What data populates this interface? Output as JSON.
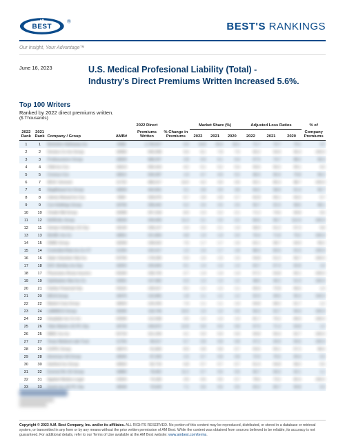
{
  "brand": {
    "logo_text_top": "AM",
    "logo_text_main": "BEST",
    "logo_text_since": "SINCE 1899",
    "title_bold": "BEST'S",
    "title_light": " RANKINGS",
    "tagline": "Our Insight, Your Advantage™"
  },
  "date": "June 16, 2023",
  "main_title_line1": "U.S. Medical Profesional Liability (Total) -",
  "main_title_line2": "Industry's Direct Premiums Written Increased 5.6%.",
  "section": {
    "title": "Top 100 Writers",
    "sub": "Ranked by 2022 direct premiums written.",
    "unit": "($ Thousands)"
  },
  "table": {
    "col_widths_pct": [
      4,
      4,
      19,
      6,
      9,
      8,
      5,
      5,
      5,
      6,
      6,
      6,
      7
    ],
    "header_row1": [
      "",
      "",
      "",
      "",
      "2022 Direct",
      "",
      "Market Share (%)",
      "Adjusted Loss Ratios",
      "% of"
    ],
    "header_row1_spans": [
      1,
      1,
      1,
      1,
      1,
      1,
      3,
      3,
      1
    ],
    "header_row2": [
      "2022 Rank",
      "2021 Rank",
      "Company / Group",
      "AMB#",
      "Premiums Written",
      "% Change in Premiums",
      "2022",
      "2021",
      "2020",
      "2022",
      "2021",
      "2020",
      "Company Premiums"
    ],
    "rows": [
      {
        "r22": "1",
        "r21": "1",
        "co": "Berkshire Hathaway Ins",
        "amb": "0058",
        "dpw": "1726917",
        "chg": "0.0",
        "ms22": "14.8",
        "ms21": "15.6",
        "ms20": "16.1",
        "lr22": "71.7",
        "lr21": "72.7",
        "lr20": "73.1",
        "pct": "2.2"
      },
      {
        "r22": "2",
        "r21": "2",
        "co": "Doctors Co Ins Group",
        "amb": "18083",
        "dpw": "940098",
        "chg": "9.4",
        "ms22": "8.1",
        "ms21": "7.8",
        "ms20": "7.5",
        "lr22": "60.2",
        "lr21": "54.9",
        "lr20": "56.3",
        "pct": "100.0"
      },
      {
        "r22": "3",
        "r21": "3",
        "co": "ProAssurance Group",
        "amb": "18559",
        "dpw": "688257",
        "chg": "2.8",
        "ms22": "5.9",
        "ms21": "6.1",
        "ms20": "6.4",
        "lr22": "67.5",
        "lr21": "74.7",
        "lr20": "88.2",
        "pct": "58.3"
      },
      {
        "r22": "4",
        "r21": "4",
        "co": "CNA Ins Cos",
        "amb": "18313",
        "dpw": "595416",
        "chg": "4.2",
        "ms22": "5.1",
        "ms21": "5.2",
        "ms20": "5.4",
        "lr22": "59.6",
        "lr21": "56.2",
        "lr20": "59.1",
        "pct": "4.3"
      },
      {
        "r22": "5",
        "r21": "5",
        "co": "Coverys Cos",
        "amb": "18521",
        "dpw": "549287",
        "chg": "1.9",
        "ms22": "4.7",
        "ms21": "4.9",
        "ms20": "5.2",
        "lr22": "68.3",
        "lr21": "65.4",
        "lr20": "70.8",
        "pct": "96.2"
      },
      {
        "r22": "6",
        "r21": "7",
        "co": "MCIC Vermont",
        "amb": "11722",
        "dpw": "486517",
        "chg": "14.0",
        "ms22": "4.2",
        "ms21": "3.9",
        "ms20": "3.6",
        "lr22": "92.1",
        "lr21": "85.3",
        "lr20": "88.7",
        "pct": "100.0"
      },
      {
        "r22": "7",
        "r21": "6",
        "co": "MagMutual Ins Group",
        "amb": "18559",
        "dpw": "442831",
        "chg": "3.1",
        "ms22": "3.8",
        "ms21": "3.9",
        "ms20": "3.8",
        "lr22": "64.2",
        "lr21": "58.9",
        "lr20": "61.4",
        "pct": "95.7"
      },
      {
        "r22": "8",
        "r21": "8",
        "co": "Liberty Mutual Ins Cos",
        "amb": "0060",
        "dpw": "328975",
        "chg": "6.7",
        "ms22": "2.8",
        "ms21": "2.8",
        "ms20": "2.7",
        "lr22": "62.8",
        "lr21": "66.1",
        "lr20": "64.3",
        "pct": "0.7"
      },
      {
        "r22": "9",
        "r21": "9",
        "co": "Curi Holdings Group",
        "amb": "18706",
        "dpw": "298442",
        "chg": "5.2",
        "ms22": "2.6",
        "ms21": "2.6",
        "ms20": "2.5",
        "lr22": "55.7",
        "lr21": "52.3",
        "lr20": "58.6",
        "pct": "98.1"
      },
      {
        "r22": "10",
        "r21": "10",
        "co": "Chubb INA Group",
        "amb": "18498",
        "dpw": "267318",
        "chg": "8.9",
        "ms22": "2.3",
        "ms21": "2.2",
        "ms20": "2.1",
        "lr22": "71.2",
        "lr21": "74.6",
        "lr20": "69.8",
        "pct": "0.6"
      },
      {
        "r22": "11",
        "r21": "12",
        "co": "NORCAL Group",
        "amb": "18539",
        "dpw": "245690",
        "chg": "11.3",
        "ms22": "2.1",
        "ms21": "2.0",
        "ms20": "2.2",
        "lr22": "83.5",
        "lr21": "95.7",
        "lr20": "112.4",
        "pct": "100.0"
      },
      {
        "r22": "12",
        "r21": "11",
        "co": "Sompo Holdings US Grp",
        "amb": "18130",
        "dpw": "238127",
        "chg": "2.4",
        "ms22": "2.0",
        "ms21": "2.1",
        "ms20": "1.9",
        "lr22": "58.9",
        "lr21": "61.2",
        "lr20": "57.3",
        "pct": "5.8"
      },
      {
        "r22": "13",
        "r21": "13",
        "co": "MLMIC Ins Co",
        "amb": "18651",
        "dpw": "221854",
        "chg": "4.8",
        "ms22": "1.9",
        "ms21": "1.9",
        "ms20": "2.0",
        "lr22": "76.4",
        "lr21": "71.8",
        "lr20": "79.2",
        "pct": "100.0"
      },
      {
        "r22": "14",
        "r21": "15",
        "co": "ISMIE Group",
        "amb": "18268",
        "dpw": "198632",
        "chg": "7.6",
        "ms22": "1.7",
        "ms21": "1.7",
        "ms20": "1.6",
        "lr22": "62.1",
        "lr21": "58.7",
        "lr20": "64.9",
        "pct": "99.2"
      },
      {
        "r22": "15",
        "r21": "14",
        "co": "Controlled Risk Ins Co VT",
        "amb": "11294",
        "dpw": "192417",
        "chg": "1.2",
        "ms22": "1.6",
        "ms21": "1.7",
        "ms20": "1.8",
        "lr22": "88.3",
        "lr21": "82.6",
        "lr20": "91.5",
        "pct": "100.0"
      },
      {
        "r22": "16",
        "r21": "16",
        "co": "State Volunteer Mut Ins",
        "amb": "03706",
        "dpw": "178295",
        "chg": "5.9",
        "ms22": "1.5",
        "ms21": "1.5",
        "ms20": "1.5",
        "lr22": "54.8",
        "lr21": "51.2",
        "lr20": "56.7",
        "pct": "100.0"
      },
      {
        "r22": "17",
        "r21": "18",
        "co": "W.R. Berkley Ins Grp",
        "amb": "18252",
        "dpw": "165843",
        "chg": "9.1",
        "ms22": "1.4",
        "ms21": "1.4",
        "ms20": "1.3",
        "lr22": "63.7",
        "lr21": "67.4",
        "lr20": "62.8",
        "pct": "1.6"
      },
      {
        "r22": "18",
        "r21": "17",
        "co": "Physicians Recip Insurers",
        "amb": "03240",
        "dpw": "158726",
        "chg": "2.7",
        "ms22": "1.4",
        "ms21": "1.4",
        "ms20": "1.4",
        "lr22": "57.2",
        "lr21": "53.8",
        "lr20": "60.1",
        "pct": "100.0"
      },
      {
        "r22": "19",
        "r21": "19",
        "co": "Ophthalmic Mut Ins Co",
        "amb": "10691",
        "dpw": "147582",
        "chg": "6.3",
        "ms22": "1.3",
        "ms21": "1.3",
        "ms20": "1.2",
        "lr22": "48.6",
        "lr21": "45.2",
        "lr20": "51.9",
        "pct": "100.0"
      },
      {
        "r22": "20",
        "r21": "21",
        "co": "Fairfax Financial Grp",
        "amb": "03116",
        "dpw": "139417",
        "chg": "8.2",
        "ms22": "1.2",
        "ms21": "1.2",
        "ms20": "1.1",
        "lr22": "69.4",
        "lr21": "72.8",
        "lr20": "66.5",
        "pct": "1.3"
      },
      {
        "r22": "21",
        "r21": "20",
        "co": "MICA Group",
        "amb": "18476",
        "dpw": "132865",
        "chg": "1.8",
        "ms22": "1.1",
        "ms21": "1.2",
        "ms20": "1.2",
        "lr22": "52.9",
        "lr21": "49.6",
        "lr20": "55.3",
        "pct": "100.0"
      },
      {
        "r22": "22",
        "r21": "22",
        "co": "Markel Corp Group",
        "amb": "18603",
        "dpw": "126293",
        "chg": "7.4",
        "ms22": "1.1",
        "ms21": "1.1",
        "ms20": "1.0",
        "lr22": "64.8",
        "lr21": "68.2",
        "lr20": "61.7",
        "pct": "1.2"
      },
      {
        "r22": "23",
        "r21": "24",
        "co": "LAMMICO Group",
        "amb": "18345",
        "dpw": "118746",
        "chg": "10.6",
        "ms22": "1.0",
        "ms21": "1.0",
        "ms20": "0.9",
        "lr22": "56.3",
        "lr21": "52.7",
        "lr20": "59.4",
        "pct": "100.0"
      },
      {
        "r22": "24",
        "r21": "23",
        "co": "Hospitals Ins Co Inc",
        "amb": "02599",
        "dpw": "112538",
        "chg": "3.5",
        "ms22": "1.0",
        "ms21": "1.0",
        "ms20": "1.0",
        "lr22": "81.7",
        "lr21": "76.2",
        "lr20": "84.9",
        "pct": "100.0"
      },
      {
        "r22": "25",
        "r21": "26",
        "co": "Tokio Marine US PC Grp",
        "amb": "18733",
        "dpw": "106872",
        "chg": "12.8",
        "ms22": "0.9",
        "ms21": "0.9",
        "ms20": "0.8",
        "lr22": "67.5",
        "lr21": "71.3",
        "lr20": "63.8",
        "pct": "1.2"
      },
      {
        "r22": "26",
        "r21": "25",
        "co": "MMIC Ins Inc",
        "amb": "02724",
        "dpw": "101294",
        "chg": "4.1",
        "ms22": "0.9",
        "ms21": "0.9",
        "ms20": "0.9",
        "lr22": "59.8",
        "lr21": "56.4",
        "lr20": "62.7",
        "pct": "100.0"
      },
      {
        "r22": "27",
        "r21": "27",
        "co": "Texas Medical Liab Trust",
        "amb": "11764",
        "dpw": "96517",
        "chg": "5.7",
        "ms22": "0.8",
        "ms21": "0.8",
        "ms20": "0.8",
        "lr22": "47.2",
        "lr21": "43.9",
        "lr20": "50.6",
        "pct": "100.0"
      },
      {
        "r22": "28",
        "r21": "29",
        "co": "COPIC Group",
        "amb": "18574",
        "dpw": "91843",
        "chg": "8.9",
        "ms22": "0.8",
        "ms21": "0.8",
        "ms20": "0.7",
        "lr22": "53.6",
        "lr21": "50.1",
        "lr20": "57.2",
        "pct": "98.4"
      },
      {
        "r22": "29",
        "r21": "28",
        "co": "American Intl Group",
        "amb": "18540",
        "dpw": "87269",
        "chg": "2.3",
        "ms22": "0.7",
        "ms21": "0.8",
        "ms20": "0.8",
        "lr22": "72.9",
        "lr21": "76.5",
        "lr20": "69.4",
        "pct": "0.3"
      },
      {
        "r22": "30",
        "r21": "30",
        "co": "Hartford Ins Group",
        "amb": "18502",
        "dpw": "82716",
        "chg": "6.8",
        "ms22": "0.7",
        "ms21": "0.7",
        "ms20": "0.7",
        "lr22": "61.4",
        "lr21": "64.8",
        "lr20": "58.2",
        "pct": "0.5"
      },
      {
        "r22": "31",
        "r21": "32",
        "co": "Everest Re US Group",
        "amb": "18883",
        "dpw": "78452",
        "chg": "11.2",
        "ms22": "0.7",
        "ms21": "0.6",
        "ms20": "0.6",
        "lr22": "65.7",
        "lr21": "69.3",
        "lr20": "62.1",
        "pct": "1.1"
      },
      {
        "r22": "32",
        "r21": "31",
        "co": "Applied Medico-Legal",
        "amb": "13916",
        "dpw": "74183",
        "chg": "3.9",
        "ms22": "0.6",
        "ms21": "0.6",
        "ms20": "0.7",
        "lr22": "78.6",
        "lr21": "73.2",
        "lr20": "82.4",
        "pct": "100.0"
      },
      {
        "r22": "33",
        "r21": "33",
        "co": "Zurich Ins US PC Grp",
        "amb": "18549",
        "dpw": "70629",
        "chg": "7.1",
        "ms22": "0.6",
        "ms21": "0.6",
        "ms20": "0.6",
        "lr22": "63.2",
        "lr21": "66.7",
        "lr20": "59.8",
        "pct": "0.3"
      }
    ]
  },
  "copyright": {
    "bold": "Copyright © 2023 A.M. Best Company, Inc. and/or its affiliates.",
    "rest": " ALL RIGHTS RESERVED. No portion of this content may be reproduced, distributed, or stored in a database or retrieval system, or transmitted in any form or by any means without the prior written permission of AM Best. While the content was obtained from sources believed to be reliable, its accuracy is not guaranteed. For additional details, refer to our Terms of Use available at the AM Best website: ",
    "link": "www.ambest.com/terms"
  },
  "colors": {
    "brand_navy": "#0a4a8a",
    "row_alt": "#e8f1f9",
    "text": "#1a1a1a",
    "muted": "#888888"
  }
}
